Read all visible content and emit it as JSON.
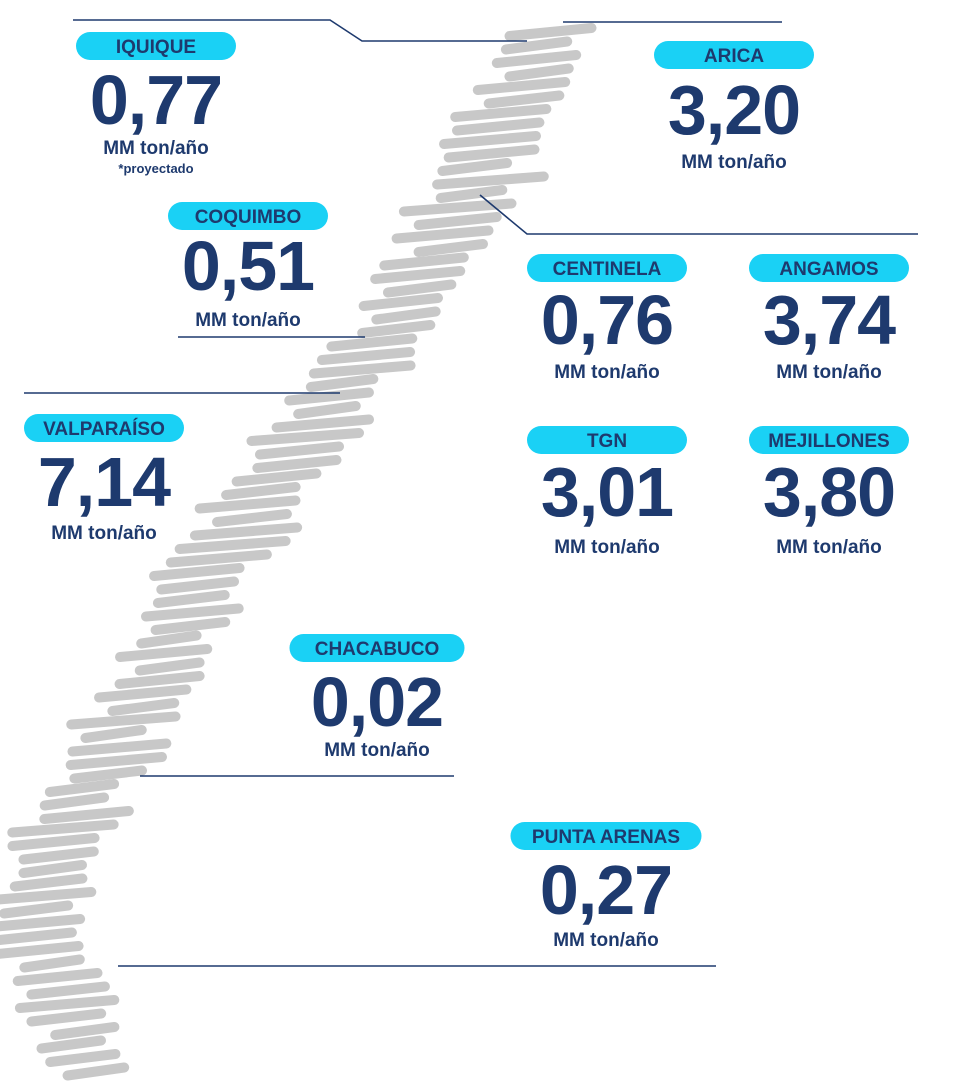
{
  "ports": [
    {
      "name": "IQUIQUE",
      "value": "0,77",
      "unit": "MM ton/año",
      "note": "*proyectado"
    },
    {
      "name": "ARICA",
      "value": "3,20",
      "unit": "MM ton/año"
    },
    {
      "name": "COQUIMBO",
      "value": "0,51",
      "unit": "MM ton/año"
    },
    {
      "name": "CENTINELA",
      "value": "0,76",
      "unit": "MM ton/año"
    },
    {
      "name": "ANGAMOS",
      "value": "3,74",
      "unit": "MM ton/año"
    },
    {
      "name": "VALPARAÍSO",
      "value": "7,14",
      "unit": "MM ton/año"
    },
    {
      "name": "TGN",
      "value": "3,01",
      "unit": "MM ton/año"
    },
    {
      "name": "MEJILLONES",
      "value": "3,80",
      "unit": "MM ton/año"
    },
    {
      "name": "CHACABUCO",
      "value": "0,02",
      "unit": "MM ton/año"
    },
    {
      "name": "PUNTA ARENAS",
      "value": "0,27",
      "unit": "MM ton/año"
    }
  ]
}
